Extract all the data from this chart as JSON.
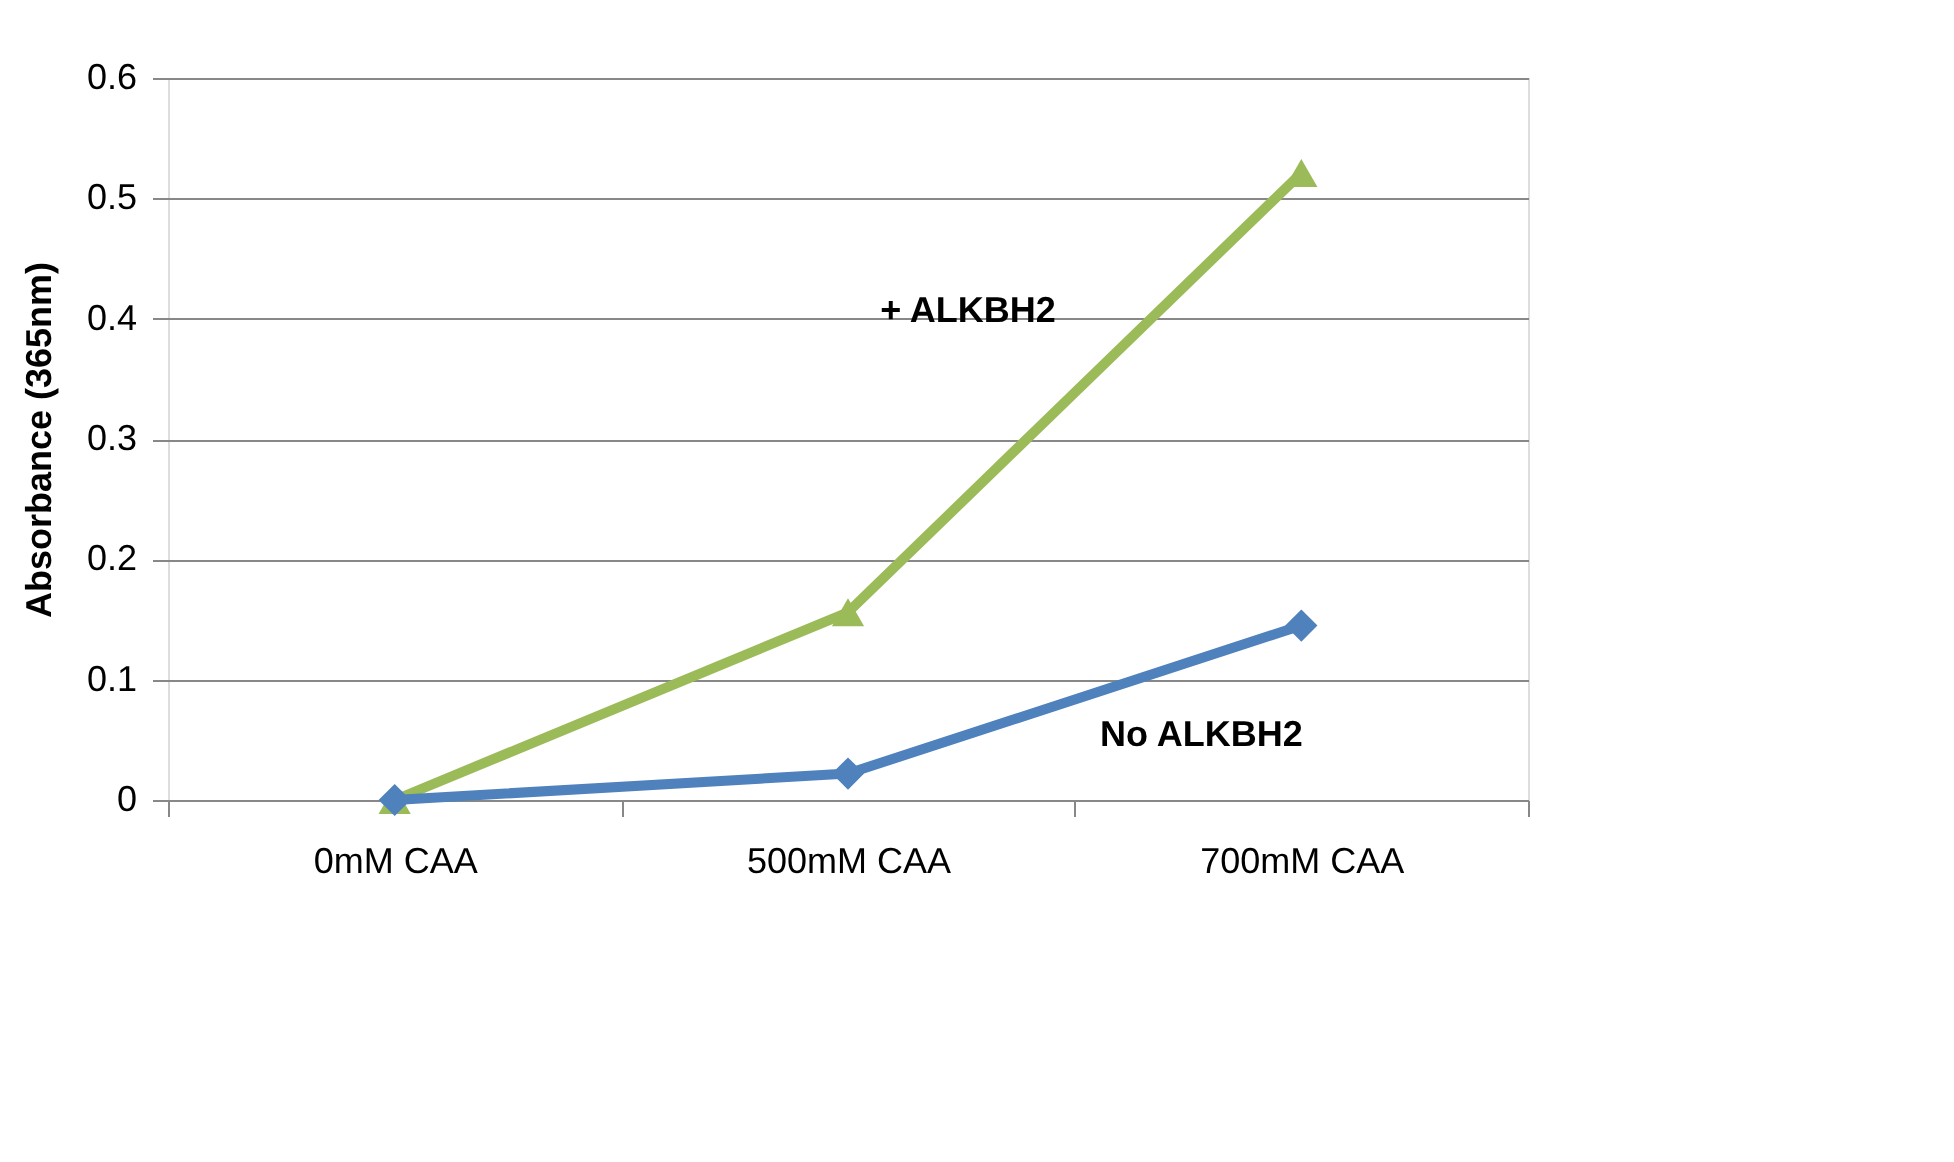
{
  "chart_data": {
    "type": "line",
    "ylabel": "Absorbance (365nm)",
    "categories": [
      "0mM CAA",
      "500mM CAA",
      "700mM CAA"
    ],
    "series": [
      {
        "name": "+ ALKBH2",
        "color": "#9bbb59",
        "marker": "triangle",
        "values": [
          0,
          0.156,
          0.521
        ]
      },
      {
        "name": "No ALKBH2",
        "color": "#4f81bd",
        "marker": "diamond",
        "values": [
          0,
          0.022,
          0.145
        ]
      }
    ],
    "ylim": [
      0,
      0.6
    ],
    "yticks": [
      0,
      0.1,
      0.2,
      0.3,
      0.4,
      0.5,
      0.6
    ],
    "grid": "y",
    "line_style": "solid"
  }
}
